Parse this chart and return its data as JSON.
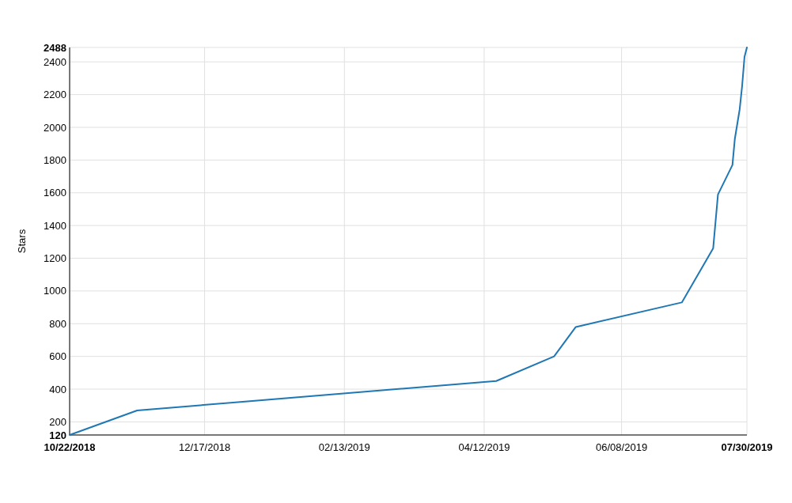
{
  "chart_data": {
    "type": "line",
    "ylabel": "Stars",
    "x": [
      "2018-10-22",
      "2018-11-19",
      "2019-04-17",
      "2019-05-11",
      "2019-05-20",
      "2019-07-03",
      "2019-07-16",
      "2019-07-18",
      "2019-07-24",
      "2019-07-25",
      "2019-07-27",
      "2019-07-28",
      "2019-07-29",
      "2019-07-30"
    ],
    "series": [
      {
        "color": "#1f77b4",
        "values": [
          120,
          270,
          450,
          600,
          780,
          930,
          1260,
          1590,
          1770,
          1930,
          2110,
          2250,
          2430,
          2488
        ]
      }
    ],
    "xlim": [
      "2018-10-22",
      "2019-07-30"
    ],
    "xticks": [
      {
        "value": "2018-10-22",
        "label": "10/22/2018"
      },
      {
        "value": "2018-12-17",
        "label": "12/17/2018"
      },
      {
        "value": "2019-02-13",
        "label": "02/13/2019"
      },
      {
        "value": "2019-04-12",
        "label": "04/12/2019"
      },
      {
        "value": "2019-06-08",
        "label": "06/08/2019"
      },
      {
        "value": "2019-07-30",
        "label": "07/30/2019"
      }
    ],
    "ylim": [
      120,
      2488
    ],
    "yticks": [
      120,
      200,
      400,
      600,
      800,
      1000,
      1200,
      1400,
      1600,
      1800,
      2000,
      2200,
      2400,
      2488
    ],
    "grid": true,
    "marker": "none",
    "line_style": "solid"
  }
}
